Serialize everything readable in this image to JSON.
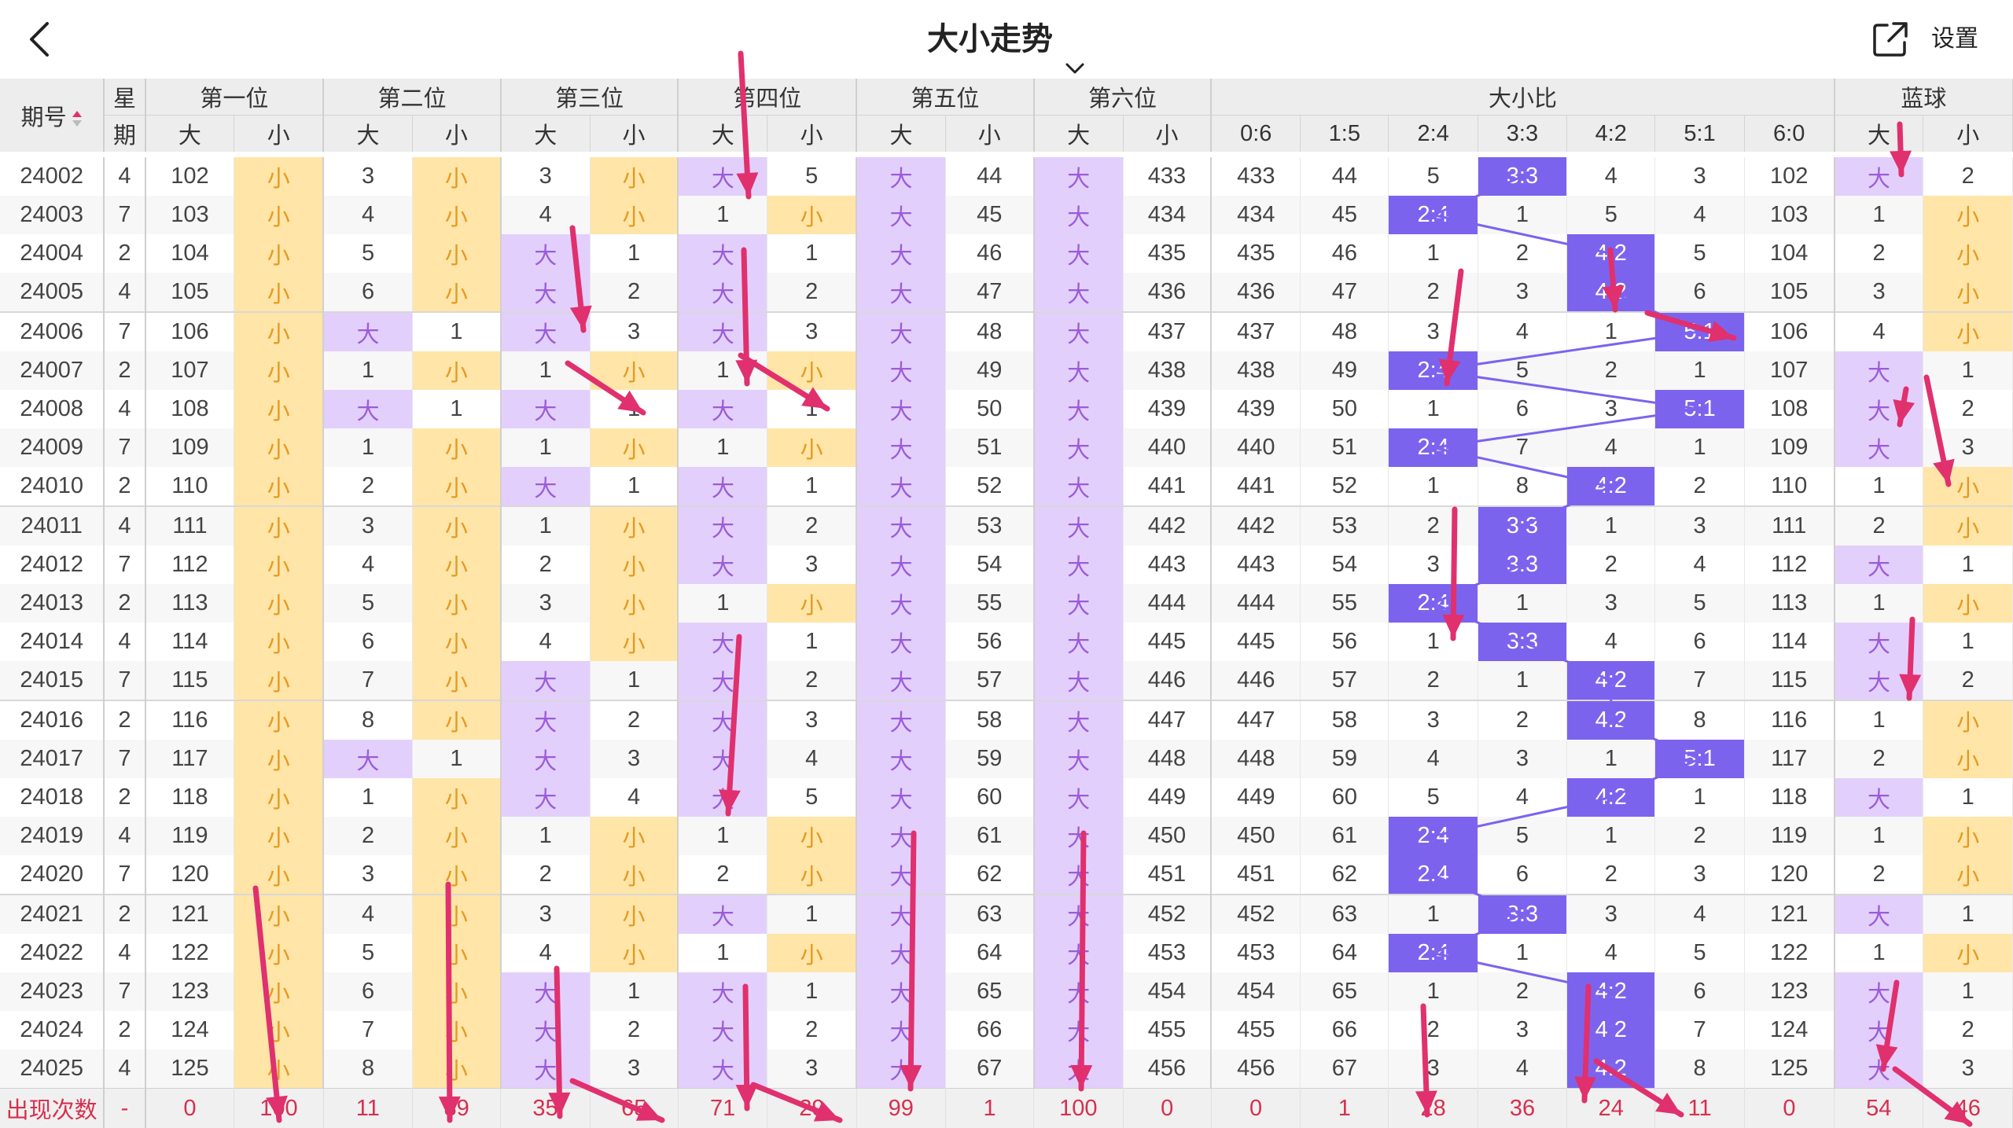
{
  "header": {
    "title": "大小走势",
    "settings_label": "设置"
  },
  "columns": {
    "period": "期号",
    "weekday_top": "星",
    "weekday_bottom": "期",
    "positions": [
      "第一位",
      "第二位",
      "第三位",
      "第四位",
      "第五位",
      "第六位"
    ],
    "ratio_group": "大小比",
    "blue_group": "蓝球",
    "big": "大",
    "small": "小",
    "ratios": [
      "0:6",
      "1:5",
      "2:4",
      "3:3",
      "4:2",
      "5:1",
      "6:0"
    ]
  },
  "big_label": "大",
  "small_label": "小",
  "rows": [
    {
      "p": "24002",
      "w": "4",
      "pos": [
        [
          102,
          "S"
        ],
        [
          3,
          "S"
        ],
        [
          3,
          "S"
        ],
        [
          "B",
          5
        ],
        [
          "B",
          44
        ],
        [
          "B",
          433
        ]
      ],
      "ratio": {
        "hit": 3,
        "v": [
          433,
          44,
          5,
          "3:3",
          4,
          3,
          102
        ]
      },
      "blue": [
        "B",
        2
      ]
    },
    {
      "p": "24003",
      "w": "7",
      "pos": [
        [
          103,
          "S"
        ],
        [
          4,
          "S"
        ],
        [
          4,
          "S"
        ],
        [
          1,
          "S"
        ],
        [
          "B",
          45
        ],
        [
          "B",
          434
        ]
      ],
      "ratio": {
        "hit": 2,
        "v": [
          434,
          45,
          "2:4",
          1,
          5,
          4,
          103
        ]
      },
      "blue": [
        1,
        "S"
      ]
    },
    {
      "p": "24004",
      "w": "2",
      "pos": [
        [
          104,
          "S"
        ],
        [
          5,
          "S"
        ],
        [
          "B",
          1
        ],
        [
          "B",
          1
        ],
        [
          "B",
          46
        ],
        [
          "B",
          435
        ]
      ],
      "ratio": {
        "hit": 4,
        "v": [
          435,
          46,
          1,
          2,
          "4:2",
          5,
          104
        ]
      },
      "blue": [
        2,
        "S"
      ]
    },
    {
      "p": "24005",
      "w": "4",
      "pos": [
        [
          105,
          "S"
        ],
        [
          6,
          "S"
        ],
        [
          "B",
          2
        ],
        [
          "B",
          2
        ],
        [
          "B",
          47
        ],
        [
          "B",
          436
        ]
      ],
      "ratio": {
        "hit": 4,
        "v": [
          436,
          47,
          2,
          3,
          "4:2",
          6,
          105
        ]
      },
      "blue": [
        3,
        "S"
      ]
    },
    {
      "p": "24006",
      "w": "7",
      "pos": [
        [
          106,
          "S"
        ],
        [
          "B",
          1
        ],
        [
          "B",
          3
        ],
        [
          "B",
          3
        ],
        [
          "B",
          48
        ],
        [
          "B",
          437
        ]
      ],
      "ratio": {
        "hit": 5,
        "v": [
          437,
          48,
          3,
          4,
          1,
          "5:1",
          106
        ]
      },
      "blue": [
        4,
        "S"
      ]
    },
    {
      "p": "24007",
      "w": "2",
      "pos": [
        [
          107,
          "S"
        ],
        [
          1,
          "S"
        ],
        [
          1,
          "S"
        ],
        [
          1,
          "S"
        ],
        [
          "B",
          49
        ],
        [
          "B",
          438
        ]
      ],
      "ratio": {
        "hit": 2,
        "v": [
          438,
          49,
          "2:4",
          5,
          2,
          1,
          107
        ]
      },
      "blue": [
        "B",
        1
      ]
    },
    {
      "p": "24008",
      "w": "4",
      "pos": [
        [
          108,
          "S"
        ],
        [
          "B",
          1
        ],
        [
          "B",
          1
        ],
        [
          "B",
          1
        ],
        [
          "B",
          50
        ],
        [
          "B",
          439
        ]
      ],
      "ratio": {
        "hit": 5,
        "v": [
          439,
          50,
          1,
          6,
          3,
          "5:1",
          108
        ]
      },
      "blue": [
        "B",
        2
      ]
    },
    {
      "p": "24009",
      "w": "7",
      "pos": [
        [
          109,
          "S"
        ],
        [
          1,
          "S"
        ],
        [
          1,
          "S"
        ],
        [
          1,
          "S"
        ],
        [
          "B",
          51
        ],
        [
          "B",
          440
        ]
      ],
      "ratio": {
        "hit": 2,
        "v": [
          440,
          51,
          "2:4",
          7,
          4,
          1,
          109
        ]
      },
      "blue": [
        "B",
        3
      ]
    },
    {
      "p": "24010",
      "w": "2",
      "pos": [
        [
          110,
          "S"
        ],
        [
          2,
          "S"
        ],
        [
          "B",
          1
        ],
        [
          "B",
          1
        ],
        [
          "B",
          52
        ],
        [
          "B",
          441
        ]
      ],
      "ratio": {
        "hit": 4,
        "v": [
          441,
          52,
          1,
          8,
          "4:2",
          2,
          110
        ]
      },
      "blue": [
        1,
        "S"
      ]
    },
    {
      "p": "24011",
      "w": "4",
      "pos": [
        [
          111,
          "S"
        ],
        [
          3,
          "S"
        ],
        [
          1,
          "S"
        ],
        [
          "B",
          2
        ],
        [
          "B",
          53
        ],
        [
          "B",
          442
        ]
      ],
      "ratio": {
        "hit": 3,
        "v": [
          442,
          53,
          2,
          "3:3",
          1,
          3,
          111
        ]
      },
      "blue": [
        2,
        "S"
      ]
    },
    {
      "p": "24012",
      "w": "7",
      "pos": [
        [
          112,
          "S"
        ],
        [
          4,
          "S"
        ],
        [
          2,
          "S"
        ],
        [
          "B",
          3
        ],
        [
          "B",
          54
        ],
        [
          "B",
          443
        ]
      ],
      "ratio": {
        "hit": 3,
        "v": [
          443,
          54,
          3,
          "3:3",
          2,
          4,
          112
        ]
      },
      "blue": [
        "B",
        1
      ]
    },
    {
      "p": "24013",
      "w": "2",
      "pos": [
        [
          113,
          "S"
        ],
        [
          5,
          "S"
        ],
        [
          3,
          "S"
        ],
        [
          1,
          "S"
        ],
        [
          "B",
          55
        ],
        [
          "B",
          444
        ]
      ],
      "ratio": {
        "hit": 2,
        "v": [
          444,
          55,
          "2:4",
          1,
          3,
          5,
          113
        ]
      },
      "blue": [
        1,
        "S"
      ]
    },
    {
      "p": "24014",
      "w": "4",
      "pos": [
        [
          114,
          "S"
        ],
        [
          6,
          "S"
        ],
        [
          4,
          "S"
        ],
        [
          "B",
          1
        ],
        [
          "B",
          56
        ],
        [
          "B",
          445
        ]
      ],
      "ratio": {
        "hit": 3,
        "v": [
          445,
          56,
          1,
          "3:3",
          4,
          6,
          114
        ]
      },
      "blue": [
        "B",
        1
      ]
    },
    {
      "p": "24015",
      "w": "7",
      "pos": [
        [
          115,
          "S"
        ],
        [
          7,
          "S"
        ],
        [
          "B",
          1
        ],
        [
          "B",
          2
        ],
        [
          "B",
          57
        ],
        [
          "B",
          446
        ]
      ],
      "ratio": {
        "hit": 4,
        "v": [
          446,
          57,
          2,
          1,
          "4:2",
          7,
          115
        ]
      },
      "blue": [
        "B",
        2
      ]
    },
    {
      "p": "24016",
      "w": "2",
      "pos": [
        [
          116,
          "S"
        ],
        [
          8,
          "S"
        ],
        [
          "B",
          2
        ],
        [
          "B",
          3
        ],
        [
          "B",
          58
        ],
        [
          "B",
          447
        ]
      ],
      "ratio": {
        "hit": 4,
        "v": [
          447,
          58,
          3,
          2,
          "4:2",
          8,
          116
        ]
      },
      "blue": [
        1,
        "S"
      ]
    },
    {
      "p": "24017",
      "w": "7",
      "pos": [
        [
          117,
          "S"
        ],
        [
          "B",
          1
        ],
        [
          "B",
          3
        ],
        [
          "B",
          4
        ],
        [
          "B",
          59
        ],
        [
          "B",
          448
        ]
      ],
      "ratio": {
        "hit": 5,
        "v": [
          448,
          59,
          4,
          3,
          1,
          "5:1",
          117
        ]
      },
      "blue": [
        2,
        "S"
      ]
    },
    {
      "p": "24018",
      "w": "2",
      "pos": [
        [
          118,
          "S"
        ],
        [
          1,
          "S"
        ],
        [
          "B",
          4
        ],
        [
          "B",
          5
        ],
        [
          "B",
          60
        ],
        [
          "B",
          449
        ]
      ],
      "ratio": {
        "hit": 4,
        "v": [
          449,
          60,
          5,
          4,
          "4:2",
          1,
          118
        ]
      },
      "blue": [
        "B",
        1
      ]
    },
    {
      "p": "24019",
      "w": "4",
      "pos": [
        [
          119,
          "S"
        ],
        [
          2,
          "S"
        ],
        [
          1,
          "S"
        ],
        [
          1,
          "S"
        ],
        [
          "B",
          61
        ],
        [
          "B",
          450
        ]
      ],
      "ratio": {
        "hit": 2,
        "v": [
          450,
          61,
          "2:4",
          5,
          1,
          2,
          119
        ]
      },
      "blue": [
        1,
        "S"
      ]
    },
    {
      "p": "24020",
      "w": "7",
      "pos": [
        [
          120,
          "S"
        ],
        [
          3,
          "S"
        ],
        [
          2,
          "S"
        ],
        [
          2,
          "S"
        ],
        [
          "B",
          62
        ],
        [
          "B",
          451
        ]
      ],
      "ratio": {
        "hit": 2,
        "v": [
          451,
          62,
          "2:4",
          6,
          2,
          3,
          120
        ]
      },
      "blue": [
        2,
        "S"
      ]
    },
    {
      "p": "24021",
      "w": "2",
      "pos": [
        [
          121,
          "S"
        ],
        [
          4,
          "S"
        ],
        [
          3,
          "S"
        ],
        [
          "B",
          1
        ],
        [
          "B",
          63
        ],
        [
          "B",
          452
        ]
      ],
      "ratio": {
        "hit": 3,
        "v": [
          452,
          63,
          1,
          "3:3",
          3,
          4,
          121
        ]
      },
      "blue": [
        "B",
        1
      ]
    },
    {
      "p": "24022",
      "w": "4",
      "pos": [
        [
          122,
          "S"
        ],
        [
          5,
          "S"
        ],
        [
          4,
          "S"
        ],
        [
          1,
          "S"
        ],
        [
          "B",
          64
        ],
        [
          "B",
          453
        ]
      ],
      "ratio": {
        "hit": 2,
        "v": [
          453,
          64,
          "2:4",
          1,
          4,
          5,
          122
        ]
      },
      "blue": [
        1,
        "S"
      ]
    },
    {
      "p": "24023",
      "w": "7",
      "pos": [
        [
          123,
          "S"
        ],
        [
          6,
          "S"
        ],
        [
          "B",
          1
        ],
        [
          "B",
          1
        ],
        [
          "B",
          65
        ],
        [
          "B",
          454
        ]
      ],
      "ratio": {
        "hit": 4,
        "v": [
          454,
          65,
          1,
          2,
          "4:2",
          6,
          123
        ]
      },
      "blue": [
        "B",
        1
      ]
    },
    {
      "p": "24024",
      "w": "2",
      "pos": [
        [
          124,
          "S"
        ],
        [
          7,
          "S"
        ],
        [
          "B",
          2
        ],
        [
          "B",
          2
        ],
        [
          "B",
          66
        ],
        [
          "B",
          455
        ]
      ],
      "ratio": {
        "hit": 4,
        "v": [
          455,
          66,
          2,
          3,
          "4:2",
          7,
          124
        ]
      },
      "blue": [
        "B",
        2
      ]
    },
    {
      "p": "24025",
      "w": "4",
      "pos": [
        [
          125,
          "S"
        ],
        [
          8,
          "S"
        ],
        [
          "B",
          3
        ],
        [
          "B",
          3
        ],
        [
          "B",
          67
        ],
        [
          "B",
          456
        ]
      ],
      "ratio": {
        "hit": 4,
        "v": [
          456,
          67,
          3,
          4,
          "4:2",
          8,
          125
        ]
      },
      "blue": [
        "B",
        3
      ]
    }
  ],
  "footer": {
    "label": "出现次数",
    "dash": "-",
    "values": [
      "0",
      "100",
      "11",
      "89",
      "35",
      "65",
      "71",
      "29",
      "99",
      "1",
      "100",
      "0",
      "0",
      "1",
      "28",
      "36",
      "24",
      "11",
      "0",
      "54",
      "46"
    ]
  },
  "colors": {
    "big_bg": "#e3cffb",
    "big_text": "#9a5cd9",
    "small_bg": "#ffe5a7",
    "small_text": "#e49a22",
    "ratio_highlight": "#7c63ee",
    "footer_text": "#d6304f",
    "arrow": "#e0306e"
  }
}
